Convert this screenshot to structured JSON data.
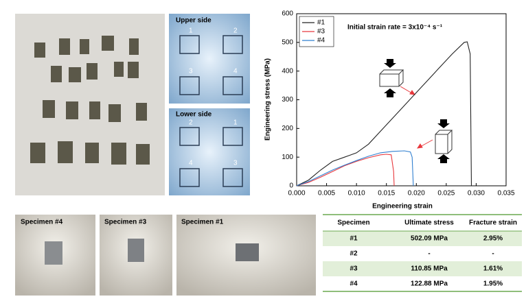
{
  "photos": {
    "upper_side": "Upper side",
    "lower_side": "Lower side",
    "upper_labels": [
      "1",
      "2",
      "3",
      "4"
    ],
    "lower_labels": [
      "2",
      "1",
      "4",
      "3"
    ],
    "specimens": [
      "Specimen #4",
      "Specimen #3",
      "Specimen #1"
    ]
  },
  "chart_data": {
    "type": "line",
    "xlabel": "Engineering strain",
    "ylabel": "Engineering stress (MPa)",
    "annotation": "Initial strain rate = 3x10⁻⁴ s⁻¹",
    "xlim": [
      0,
      0.035
    ],
    "xticks": [
      {
        "value": 0,
        "label": "0.000"
      },
      {
        "value": 0.005,
        "label": "0.005"
      },
      {
        "value": 0.01,
        "label": "0.010"
      },
      {
        "value": 0.015,
        "label": "0.015"
      },
      {
        "value": 0.02,
        "label": "0.020"
      },
      {
        "value": 0.025,
        "label": "0.025"
      },
      {
        "value": 0.03,
        "label": "0.030"
      },
      {
        "value": 0.035,
        "label": "0.035"
      }
    ],
    "ylim": [
      0,
      600
    ],
    "yticks": [
      0,
      100,
      200,
      300,
      400,
      500,
      600
    ],
    "legend": "upper left",
    "series": [
      {
        "name": "#1",
        "color": "#222222",
        "x": [
          0,
          0.002,
          0.004,
          0.006,
          0.008,
          0.01,
          0.012,
          0.014,
          0.016,
          0.018,
          0.02,
          0.022,
          0.024,
          0.026,
          0.028,
          0.0285,
          0.029,
          0.0292
        ],
        "values": [
          0,
          20,
          55,
          85,
          100,
          115,
          145,
          190,
          235,
          280,
          325,
          370,
          415,
          460,
          500,
          502,
          460,
          0
        ]
      },
      {
        "name": "#3",
        "color": "#e8383d",
        "x": [
          0,
          0.002,
          0.004,
          0.006,
          0.008,
          0.01,
          0.012,
          0.014,
          0.015,
          0.0158,
          0.0162,
          0.0163
        ],
        "values": [
          0,
          12,
          30,
          50,
          70,
          85,
          98,
          108,
          110,
          108,
          50,
          0
        ]
      },
      {
        "name": "#4",
        "color": "#2f7fd0",
        "x": [
          0,
          0.002,
          0.004,
          0.006,
          0.008,
          0.01,
          0.012,
          0.014,
          0.016,
          0.018,
          0.019,
          0.0193,
          0.0195
        ],
        "values": [
          0,
          15,
          35,
          55,
          72,
          88,
          103,
          115,
          120,
          122,
          118,
          100,
          0
        ]
      }
    ]
  },
  "table": {
    "header": [
      "Specimen",
      "Ultimate stress",
      "Fracture strain"
    ],
    "rows": [
      [
        "#1",
        "502.09 MPa",
        "2.95%"
      ],
      [
        "#2",
        "-",
        "-"
      ],
      [
        "#3",
        "110.85 MPa",
        "1.61%"
      ],
      [
        "#4",
        "122.88 MPa",
        "1.95%"
      ]
    ]
  }
}
